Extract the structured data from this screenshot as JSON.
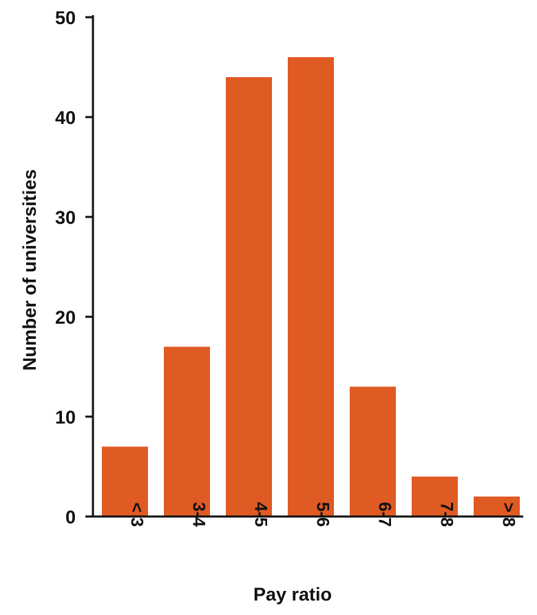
{
  "chart_data": {
    "type": "bar",
    "categories": [
      "< 3",
      "3-4",
      "4-5",
      "5-6",
      "6-7",
      "7-8",
      "> 8"
    ],
    "values": [
      7,
      17,
      44,
      46,
      13,
      4,
      2
    ],
    "xlabel": "Pay ratio",
    "ylabel": "Number of universities",
    "ylim": [
      0,
      50
    ],
    "yticks": [
      0,
      10,
      20,
      30,
      40,
      50
    ],
    "bar_color": "#E05A24",
    "grid": false,
    "legend": "none"
  }
}
